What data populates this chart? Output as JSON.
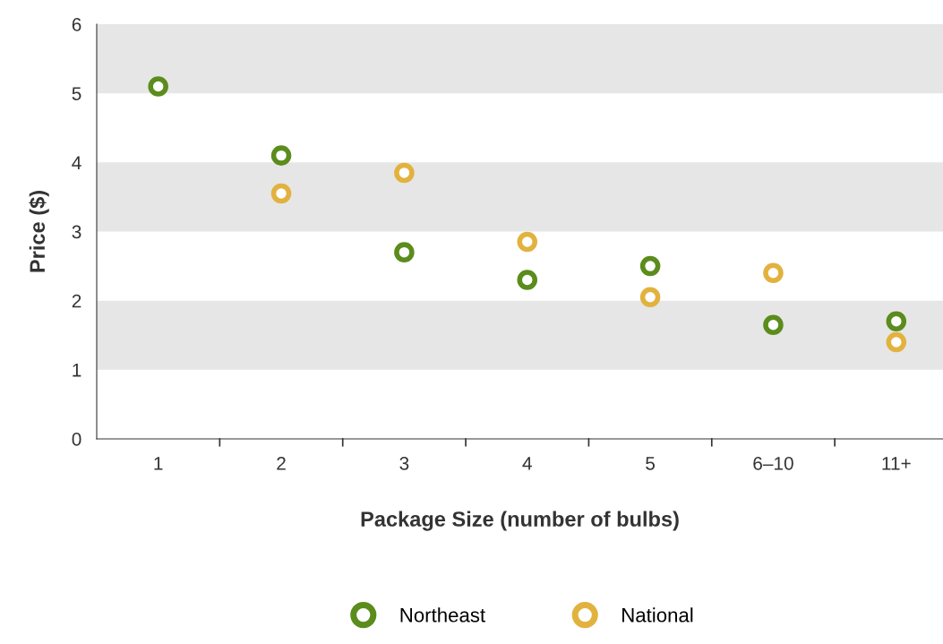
{
  "chart_data": {
    "type": "scatter",
    "xlabel": "Package Size (number of bulbs)",
    "ylabel": "Price ($)",
    "categories": [
      "1",
      "2",
      "3",
      "4",
      "5",
      "6–10",
      "11+"
    ],
    "series": [
      {
        "name": "Northeast",
        "color": "#5b8c1c",
        "values": [
          5.1,
          4.1,
          2.7,
          2.3,
          2.5,
          1.65,
          1.7
        ]
      },
      {
        "name": "National",
        "color": "#e2b23e",
        "values": [
          null,
          3.55,
          3.85,
          2.85,
          2.05,
          2.4,
          1.4
        ]
      }
    ],
    "ylim": [
      0,
      6
    ],
    "yticks": [
      0,
      1,
      2,
      3,
      4,
      5,
      6
    ],
    "bands": [
      {
        "axis": "y",
        "from": 1,
        "to": 2,
        "color": "#e6e6e7"
      },
      {
        "axis": "y",
        "from": 3,
        "to": 4,
        "color": "#e6e6e7"
      },
      {
        "axis": "y",
        "from": 5,
        "to": 6,
        "color": "#e6e6e7"
      }
    ],
    "marker": "circle",
    "grid": false,
    "legend": "bottom"
  }
}
